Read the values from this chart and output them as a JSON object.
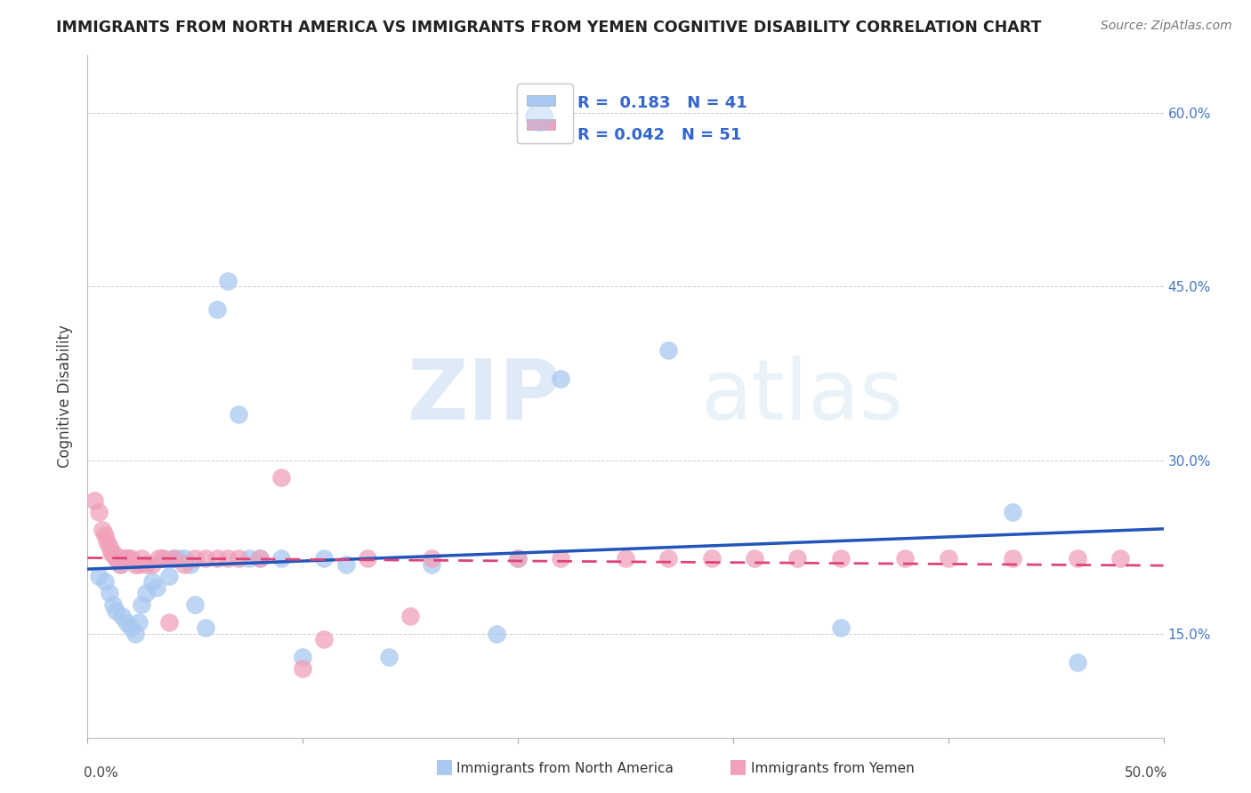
{
  "title": "IMMIGRANTS FROM NORTH AMERICA VS IMMIGRANTS FROM YEMEN COGNITIVE DISABILITY CORRELATION CHART",
  "source": "Source: ZipAtlas.com",
  "ylabel": "Cognitive Disability",
  "right_yticks": [
    "60.0%",
    "45.0%",
    "30.0%",
    "15.0%"
  ],
  "right_ytick_vals": [
    0.6,
    0.45,
    0.3,
    0.15
  ],
  "xlim": [
    0.0,
    0.5
  ],
  "ylim": [
    0.06,
    0.65
  ],
  "legend_r_blue": "0.183",
  "legend_n_blue": "41",
  "legend_r_pink": "0.042",
  "legend_n_pink": "51",
  "legend_label_blue": "Immigrants from North America",
  "legend_label_pink": "Immigrants from Yemen",
  "blue_color": "#A8C8F0",
  "pink_color": "#F0A0B8",
  "blue_line_color": "#2255BB",
  "pink_line_color": "#DD4477",
  "watermark_zip": "ZIP",
  "watermark_atlas": "atlas",
  "background_color": "#FFFFFF",
  "blue_scatter_x": [
    0.005,
    0.008,
    0.01,
    0.012,
    0.013,
    0.015,
    0.016,
    0.018,
    0.02,
    0.022,
    0.024,
    0.025,
    0.027,
    0.03,
    0.032,
    0.035,
    0.038,
    0.04,
    0.042,
    0.045,
    0.048,
    0.05,
    0.055,
    0.06,
    0.065,
    0.07,
    0.075,
    0.08,
    0.09,
    0.1,
    0.11,
    0.12,
    0.14,
    0.16,
    0.19,
    0.2,
    0.22,
    0.27,
    0.35,
    0.43,
    0.46
  ],
  "blue_scatter_y": [
    0.2,
    0.195,
    0.185,
    0.175,
    0.17,
    0.21,
    0.165,
    0.16,
    0.155,
    0.15,
    0.16,
    0.175,
    0.185,
    0.195,
    0.19,
    0.215,
    0.2,
    0.215,
    0.215,
    0.215,
    0.21,
    0.175,
    0.155,
    0.43,
    0.455,
    0.34,
    0.215,
    0.215,
    0.215,
    0.13,
    0.215,
    0.21,
    0.13,
    0.21,
    0.15,
    0.215,
    0.37,
    0.395,
    0.155,
    0.255,
    0.125
  ],
  "pink_scatter_x": [
    0.003,
    0.005,
    0.007,
    0.008,
    0.009,
    0.01,
    0.011,
    0.012,
    0.013,
    0.014,
    0.015,
    0.016,
    0.017,
    0.018,
    0.019,
    0.02,
    0.022,
    0.024,
    0.025,
    0.027,
    0.03,
    0.033,
    0.035,
    0.038,
    0.04,
    0.045,
    0.05,
    0.055,
    0.06,
    0.065,
    0.07,
    0.08,
    0.09,
    0.1,
    0.11,
    0.13,
    0.15,
    0.16,
    0.2,
    0.22,
    0.25,
    0.27,
    0.29,
    0.31,
    0.33,
    0.35,
    0.38,
    0.4,
    0.43,
    0.46,
    0.48
  ],
  "pink_scatter_y": [
    0.265,
    0.255,
    0.24,
    0.235,
    0.23,
    0.225,
    0.22,
    0.22,
    0.215,
    0.215,
    0.21,
    0.215,
    0.215,
    0.215,
    0.215,
    0.215,
    0.21,
    0.21,
    0.215,
    0.21,
    0.21,
    0.215,
    0.215,
    0.16,
    0.215,
    0.21,
    0.215,
    0.215,
    0.215,
    0.215,
    0.215,
    0.215,
    0.285,
    0.12,
    0.145,
    0.215,
    0.165,
    0.215,
    0.215,
    0.215,
    0.215,
    0.215,
    0.215,
    0.215,
    0.215,
    0.215,
    0.215,
    0.215,
    0.215,
    0.215,
    0.215
  ]
}
